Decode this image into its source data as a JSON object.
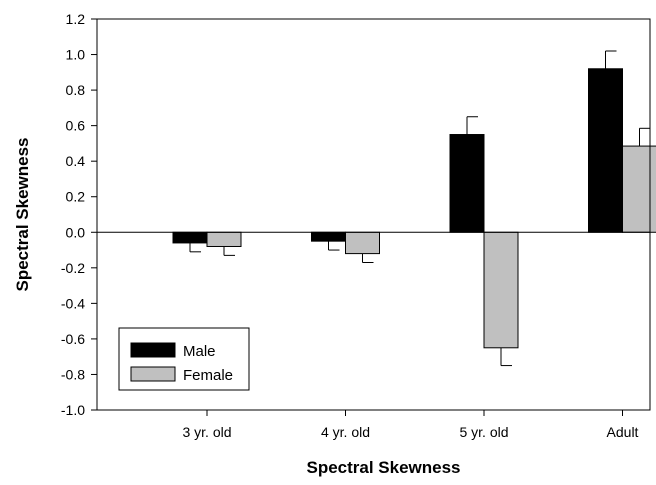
{
  "chart_data": {
    "type": "bar",
    "title": "",
    "xlabel": "Spectral Skewness",
    "ylabel": "Spectral Skewness",
    "categories": [
      "3 yr. old",
      "4 yr. old",
      "5 yr. old",
      "Adult"
    ],
    "series": [
      {
        "name": "Male",
        "values": [
          -0.06,
          -0.05,
          0.55,
          0.92
        ],
        "errors": [
          0.05,
          0.05,
          0.1,
          0.1
        ],
        "color": "#000000"
      },
      {
        "name": "Female",
        "values": [
          -0.08,
          -0.12,
          -0.65,
          0.485
        ],
        "errors": [
          0.05,
          0.05,
          0.1,
          0.1
        ],
        "color": "#c0c0c0"
      }
    ],
    "ylim": [
      -1.0,
      1.2
    ],
    "yticks": [
      "-1.0",
      "-0.8",
      "-0.6",
      "-0.4",
      "-0.2",
      "0.0",
      "0.2",
      "0.4",
      "0.6",
      "0.8",
      "1.0",
      "1.2"
    ],
    "grid": false,
    "legend_position": "bottom-left"
  }
}
